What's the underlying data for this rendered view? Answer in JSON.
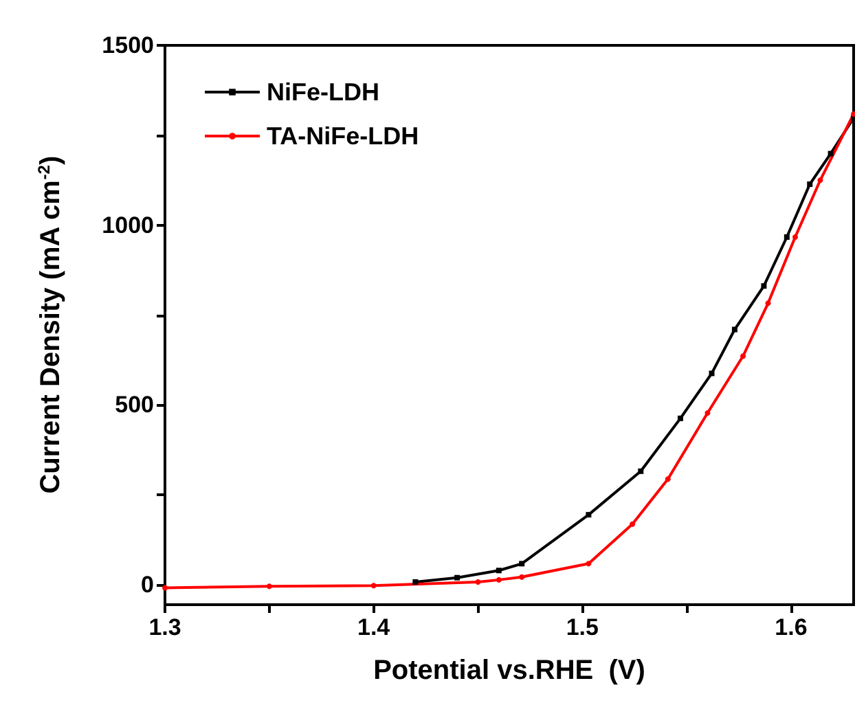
{
  "chart_data": {
    "type": "line",
    "xlabel": "Potential vs.RHE  (V)",
    "ylabel": "Current Density (mA cm$^{-2}$)",
    "xlim": [
      1.3,
      1.63
    ],
    "xticks": [
      1.3,
      {
        "value": 1.35,
        "label": null
      },
      1.4,
      {
        "value": 1.45,
        "label": null
      },
      1.5,
      {
        "value": 1.55,
        "label": null
      },
      1.6
    ],
    "ylim": [
      -55,
      1500
    ],
    "yticks": [
      0,
      {
        "value": 250,
        "label": null
      },
      500,
      {
        "value": 750,
        "label": null
      },
      1000,
      {
        "value": 1250,
        "label": null
      },
      1500
    ],
    "grid": false,
    "legend": "top left",
    "line_style": "solid",
    "series": [
      {
        "name": "NiFe-LDH",
        "color": "#000000",
        "marker": "square",
        "x": [
          1.42,
          1.44,
          1.46,
          1.471,
          1.503,
          1.528,
          1.547,
          1.562,
          1.573,
          1.587,
          1.598,
          1.609,
          1.619,
          1.63
        ],
        "values": [
          8,
          20,
          40,
          59,
          195,
          316,
          463,
          588,
          710,
          831,
          967,
          1114,
          1199,
          1298
        ]
      },
      {
        "name": "TA-NiFe-LDH",
        "color": "#ff0000",
        "marker": "circle",
        "x": [
          1.3,
          1.35,
          1.4,
          1.45,
          1.46,
          1.471,
          1.503,
          1.524,
          1.541,
          1.56,
          1.577,
          1.589,
          1.602,
          1.614,
          1.63
        ],
        "values": [
          -8,
          -4,
          -2,
          8,
          14,
          22,
          59,
          169,
          294,
          478,
          636,
          783,
          967,
          1125,
          1309
        ]
      }
    ]
  }
}
